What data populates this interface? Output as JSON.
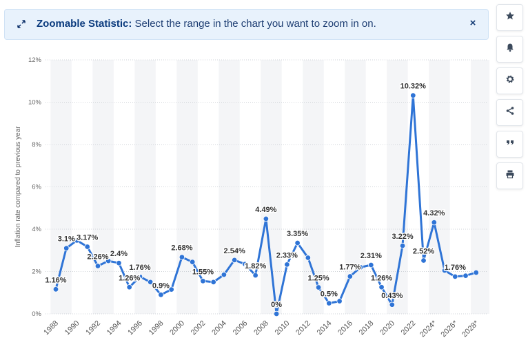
{
  "banner": {
    "title": "Zoomable Statistic:",
    "message": "Select the range in the chart you want to zoom in on.",
    "close_label": "×"
  },
  "sidebar": {
    "buttons": [
      {
        "icon": "star-icon"
      },
      {
        "icon": "bell-icon"
      },
      {
        "icon": "gear-icon"
      },
      {
        "icon": "share-icon"
      },
      {
        "icon": "quote-icon"
      },
      {
        "icon": "print-icon"
      }
    ]
  },
  "colors": {
    "line": "#2f74d6",
    "band": "#f4f5f7",
    "grid": "#cfd3d8"
  },
  "chart_data": {
    "type": "line",
    "ylabel": "Inflation rate compared to previous year",
    "xlabel": "",
    "ylim": [
      0,
      12
    ],
    "y_ticks": [
      "0%",
      "2%",
      "4%",
      "6%",
      "8%",
      "10%",
      "12%"
    ],
    "x": [
      1988,
      1989,
      1990,
      1991,
      1992,
      1993,
      1994,
      1995,
      1996,
      1997,
      1998,
      1999,
      2000,
      2001,
      2002,
      2003,
      2004,
      2005,
      2006,
      2007,
      2008,
      2009,
      2010,
      2011,
      2012,
      2013,
      2014,
      2015,
      2016,
      2017,
      2018,
      2019,
      2020,
      2021,
      2022,
      2023,
      2024,
      2025,
      2026,
      2027,
      2028,
      2029
    ],
    "x_tick_labels": [
      "1988",
      "1990",
      "1992",
      "1994",
      "1996",
      "1998",
      "2000",
      "2002",
      "2004",
      "2006",
      "2008",
      "2010",
      "2012",
      "2014",
      "2016",
      "2018",
      "2020",
      "2022",
      "2024*",
      "2026*",
      "2028*"
    ],
    "series": [
      {
        "values": [
          1.16,
          3.1,
          3.47,
          3.17,
          2.26,
          2.5,
          2.4,
          1.26,
          1.76,
          1.5,
          0.9,
          1.15,
          2.68,
          2.45,
          1.55,
          1.5,
          1.85,
          2.54,
          2.35,
          1.82,
          4.49,
          0,
          2.33,
          3.35,
          2.65,
          1.25,
          0.5,
          0.6,
          1.77,
          2.2,
          2.31,
          1.26,
          0.43,
          3.22,
          10.32,
          2.52,
          4.32,
          2.05,
          1.76,
          1.8,
          1.95,
          null
        ]
      }
    ],
    "data_labels": [
      {
        "x": 1988,
        "text": "1.16%"
      },
      {
        "x": 1989,
        "text": "3.1%"
      },
      {
        "x": 1991,
        "text": "3.17%"
      },
      {
        "x": 1992,
        "text": "2.26%"
      },
      {
        "x": 1994,
        "text": "2.4%"
      },
      {
        "x": 1995,
        "text": "1.26%"
      },
      {
        "x": 1996,
        "text": "1.76%"
      },
      {
        "x": 1998,
        "text": "0.9%"
      },
      {
        "x": 2000,
        "text": "2.68%"
      },
      {
        "x": 2002,
        "text": "1.55%"
      },
      {
        "x": 2005,
        "text": "2.54%"
      },
      {
        "x": 2007,
        "text": "1.82%"
      },
      {
        "x": 2008,
        "text": "4.49%"
      },
      {
        "x": 2009,
        "text": "0%"
      },
      {
        "x": 2010,
        "text": "2.33%"
      },
      {
        "x": 2011,
        "text": "3.35%"
      },
      {
        "x": 2013,
        "text": "1.25%"
      },
      {
        "x": 2014,
        "text": "0.5%"
      },
      {
        "x": 2016,
        "text": "1.77%"
      },
      {
        "x": 2018,
        "text": "2.31%"
      },
      {
        "x": 2019,
        "text": "1.26%"
      },
      {
        "x": 2020,
        "text": "0.43%"
      },
      {
        "x": 2021,
        "text": "3.22%"
      },
      {
        "x": 2022,
        "text": "10.32%"
      },
      {
        "x": 2023,
        "text": "2.52%"
      },
      {
        "x": 2024,
        "text": "4.32%"
      },
      {
        "x": 2026,
        "text": "1.76%"
      }
    ],
    "grid": true
  }
}
